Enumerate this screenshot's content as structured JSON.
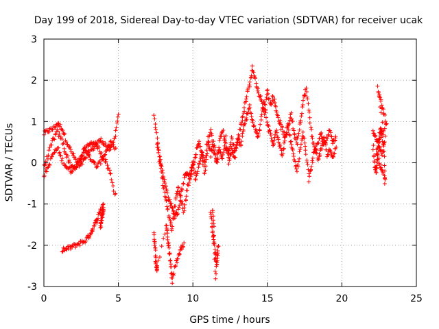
{
  "chart_data": {
    "type": "scatter",
    "title": "Day 199 of 2018, Sidereal Day-to-day VTEC variation (SDTVAR) for receiver ucak",
    "xlabel": "GPS time / hours",
    "ylabel": "SDTVAR / TECUs",
    "xlim": [
      0,
      25
    ],
    "ylim": [
      -3,
      3
    ],
    "xticks": [
      0,
      5,
      10,
      15,
      20,
      25
    ],
    "yticks": [
      -3,
      -2,
      -1,
      0,
      1,
      2,
      3
    ],
    "grid": true,
    "marker": "+",
    "color": "#ff0000",
    "series": [
      {
        "name": "SDTVAR",
        "segments": [
          {
            "x": [
              0.0,
              0.3,
              0.6,
              0.9,
              1.2,
              1.5,
              1.8,
              2.1,
              2.4,
              2.7,
              3.0,
              3.3,
              3.6,
              3.9,
              4.2,
              4.5,
              4.8,
              5.0
            ],
            "y": [
              0.7,
              0.78,
              0.82,
              0.95,
              0.85,
              0.55,
              0.3,
              0.1,
              -0.1,
              0.05,
              0.25,
              0.35,
              0.5,
              0.55,
              0.4,
              0.3,
              0.7,
              1.2
            ]
          },
          {
            "x": [
              0.0,
              0.3,
              0.6,
              0.9,
              1.2,
              1.5,
              1.8,
              2.1,
              2.4,
              2.7,
              3.0,
              3.3,
              3.6,
              3.9,
              4.2,
              4.5,
              4.8
            ],
            "y": [
              -0.1,
              0.2,
              0.55,
              0.75,
              0.55,
              0.2,
              -0.05,
              -0.15,
              0.05,
              0.3,
              0.45,
              0.5,
              0.4,
              0.2,
              0.0,
              -0.3,
              -0.8
            ]
          },
          {
            "x": [
              0.0,
              0.3,
              0.6,
              0.9,
              1.2,
              1.5,
              1.8,
              2.1,
              2.4,
              2.7,
              3.0,
              3.3,
              3.6,
              3.9,
              4.2,
              4.5,
              4.8
            ],
            "y": [
              -0.3,
              -0.1,
              0.2,
              0.35,
              0.1,
              -0.1,
              -0.2,
              -0.1,
              0.1,
              0.3,
              0.2,
              0.0,
              -0.1,
              0.1,
              0.3,
              0.5,
              0.3
            ]
          },
          {
            "x": [
              1.2,
              1.5,
              1.8,
              2.1,
              2.4,
              2.7,
              3.0,
              3.2,
              3.4,
              3.6,
              3.8,
              4.0
            ],
            "y": [
              -2.1,
              -2.1,
              -2.05,
              -2.0,
              -1.95,
              -1.9,
              -1.8,
              -1.65,
              -1.5,
              -1.35,
              -1.15,
              -1.0
            ]
          },
          {
            "x": [
              3.8,
              3.85,
              3.9,
              3.95,
              4.0
            ],
            "y": [
              -1.55,
              -1.45,
              -1.3,
              -1.2,
              -1.1
            ]
          },
          {
            "x": [
              7.4,
              7.6,
              7.8,
              8.0,
              8.2,
              8.4,
              8.6,
              8.8,
              9.0,
              9.2,
              9.4,
              9.6,
              9.8,
              10.0,
              10.2,
              10.4,
              10.6,
              10.8,
              11.0,
              11.2,
              11.4,
              11.6,
              11.8,
              12.0,
              12.2,
              12.4,
              12.6,
              12.8,
              13.0,
              13.2,
              13.4,
              13.6,
              13.8,
              14.0,
              14.2,
              14.4,
              14.6,
              14.8,
              15.0,
              15.2,
              15.4,
              15.6,
              15.8,
              16.0,
              16.2,
              16.4,
              16.6,
              16.8,
              17.0,
              17.2,
              17.4,
              17.6,
              17.8,
              18.0,
              18.2,
              18.4,
              18.6,
              18.8,
              19.0,
              19.2,
              19.4,
              19.6
            ],
            "y": [
              1.2,
              0.6,
              0.1,
              -0.3,
              -0.6,
              -0.9,
              -1.1,
              -1.3,
              -1.2,
              -0.8,
              -0.4,
              -0.2,
              -0.4,
              -0.1,
              0.2,
              0.5,
              0.2,
              -0.3,
              0.4,
              0.8,
              0.3,
              0.0,
              0.5,
              0.8,
              0.4,
              0.2,
              0.6,
              0.3,
              0.5,
              0.9,
              1.2,
              1.6,
              1.9,
              2.3,
              2.0,
              1.7,
              1.5,
              1.2,
              1.8,
              1.4,
              1.6,
              1.3,
              1.0,
              0.8,
              0.6,
              0.9,
              1.2,
              0.7,
              0.5,
              1.0,
              1.5,
              1.8,
              1.2,
              0.6,
              0.3,
              0.5,
              0.7,
              0.4,
              0.6,
              0.8,
              0.5,
              0.6
            ]
          },
          {
            "x": [
              7.6,
              7.8,
              8.0,
              8.2,
              8.4,
              8.6,
              8.8,
              9.0,
              9.2,
              9.4,
              9.6,
              9.8,
              10.0,
              10.2,
              10.4,
              10.6,
              10.8,
              11.0,
              11.2,
              11.4,
              11.6,
              11.8,
              12.0,
              12.2,
              12.4,
              12.6,
              12.8,
              13.0,
              13.2,
              13.4,
              13.6,
              13.8,
              14.0,
              14.2,
              14.4,
              14.6,
              14.8,
              15.0,
              15.2,
              15.4,
              15.6,
              15.8,
              16.0,
              16.2,
              16.4,
              16.6,
              16.8,
              17.0,
              17.2,
              17.4,
              17.6,
              17.8,
              18.0,
              18.2,
              18.4,
              18.6,
              18.8,
              19.0,
              19.2,
              19.4,
              19.6
            ],
            "y": [
              0.5,
              0.0,
              -0.5,
              -0.9,
              -1.3,
              -1.6,
              -1.0,
              -0.6,
              -0.9,
              -1.2,
              -0.7,
              -0.3,
              0.0,
              -0.4,
              -0.1,
              0.3,
              0.0,
              0.6,
              0.2,
              0.5,
              0.0,
              0.3,
              0.1,
              0.6,
              0.0,
              0.3,
              0.1,
              0.6,
              0.4,
              0.8,
              1.1,
              1.4,
              1.0,
              0.8,
              0.6,
              1.1,
              1.5,
              0.9,
              0.7,
              0.4,
              0.8,
              0.5,
              0.2,
              0.6,
              0.9,
              0.4,
              0.1,
              -0.2,
              0.3,
              0.7,
              0.2,
              -0.4,
              0.0,
              0.4,
              0.1,
              0.3,
              0.6,
              0.2,
              0.3,
              0.1,
              0.4
            ]
          },
          {
            "x": [
              7.4,
              7.45,
              7.5,
              7.55,
              7.6,
              8.2,
              8.3,
              8.4,
              8.5,
              8.6,
              8.8,
              9.0,
              9.2,
              9.4
            ],
            "y": [
              -1.7,
              -2.0,
              -2.3,
              -2.5,
              -2.6,
              -1.5,
              -1.8,
              -2.1,
              -2.4,
              -2.9,
              -2.5,
              -2.3,
              -2.1,
              -2.0
            ]
          },
          {
            "x": [
              11.2,
              11.3,
              11.4,
              11.5,
              11.6,
              11.7,
              11.5,
              11.4,
              11.3
            ],
            "y": [
              -1.2,
              -1.6,
              -1.9,
              -2.2,
              -2.5,
              -2.0,
              -2.8,
              -1.5,
              -1.1
            ]
          },
          {
            "x": [
              22.1,
              22.3,
              22.5,
              22.7,
              22.9,
              22.4,
              22.6,
              22.8,
              23.0,
              22.3,
              22.5,
              22.7,
              22.9
            ],
            "y": [
              0.8,
              0.6,
              0.4,
              0.2,
              0.6,
              1.8,
              1.5,
              1.2,
              0.9,
              0.3,
              0.0,
              -0.2,
              -0.4
            ]
          },
          {
            "x": [
              22.1,
              22.2,
              22.3,
              22.4,
              22.5,
              22.6,
              22.7,
              22.8,
              22.9
            ],
            "y": [
              0.4,
              -0.1,
              -0.2,
              0.1,
              0.6,
              0.8,
              0.7,
              0.4,
              -0.5
            ]
          }
        ]
      }
    ]
  }
}
